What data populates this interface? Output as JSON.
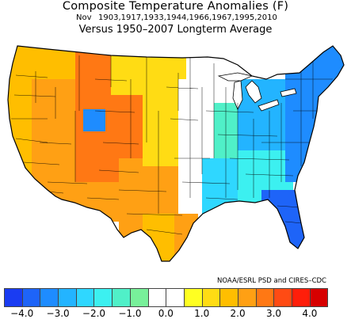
{
  "title": "Composite Temperature Anomalies (F)",
  "month": "Nov",
  "years": "1903,1917,1933,1944,1966,1967,1995,2010",
  "comparison": "Versus 1950–2007 Longterm Average",
  "credit": "NOAA/ESRL PSD and CIRES–CDC",
  "colorbar": {
    "colors": [
      "#1a3cf2",
      "#1e64f8",
      "#1e8cff",
      "#23b4ff",
      "#2fd7ff",
      "#3cf0f0",
      "#50f0c8",
      "#78f09a",
      "#ffffff",
      "#ffffff",
      "#ffff22",
      "#ffdc14",
      "#ffbe00",
      "#ffa014",
      "#ff7814",
      "#ff4b14",
      "#ff1e0a",
      "#d70000"
    ],
    "ticks": [
      "−4.0",
      "−3.0",
      "−2.0",
      "−1.0",
      "0.0",
      "1.0",
      "2.0",
      "3.0",
      "4.0"
    ]
  },
  "regions": [
    {
      "name": "pacific-northwest",
      "color": "#ffbe00"
    },
    {
      "name": "california-coast",
      "color": "#ffbe00"
    },
    {
      "name": "great-basin",
      "color": "#ffa014"
    },
    {
      "name": "southwest",
      "color": "#ffa014"
    },
    {
      "name": "utah-colorado-hotspot",
      "color": "#ff7814"
    },
    {
      "name": "rockies",
      "color": "#ffa014"
    },
    {
      "name": "southern-plains",
      "color": "#ffbe00"
    },
    {
      "name": "texas-west",
      "color": "#ffdc14"
    },
    {
      "name": "central-plains",
      "color": "#ffdc14"
    },
    {
      "name": "northern-plains-neutral",
      "color": "#ffffff"
    },
    {
      "name": "mississippi-valley-neutral",
      "color": "#ffffff"
    },
    {
      "name": "upper-midwest",
      "color": "#50f0c8"
    },
    {
      "name": "ohio-valley",
      "color": "#2fd7ff"
    },
    {
      "name": "gulf-coast",
      "color": "#3cf0f0"
    },
    {
      "name": "southeast",
      "color": "#23b4ff"
    },
    {
      "name": "great-lakes-east",
      "color": "#1e8cff"
    },
    {
      "name": "northeast",
      "color": "#1e64f8"
    },
    {
      "name": "florida",
      "color": "#1e8cff"
    },
    {
      "name": "great-lakes-water",
      "color": "#ffffff"
    }
  ]
}
